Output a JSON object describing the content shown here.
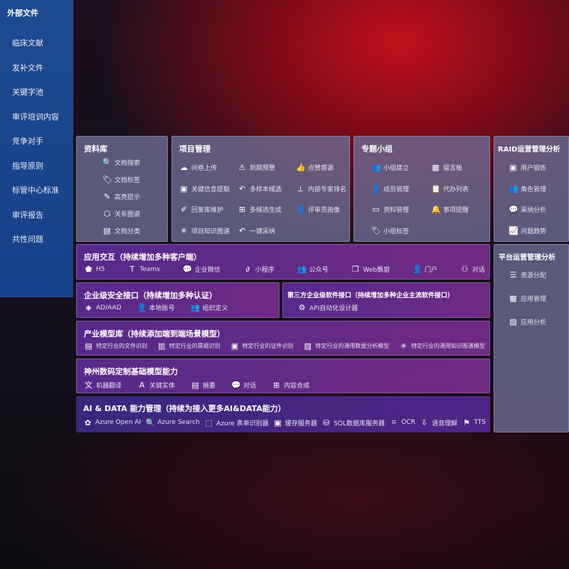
{
  "external": {
    "title": "外部文件",
    "items": [
      "临床文献",
      "发补文件",
      "关键字池",
      "审评培训内容",
      "竞争对手",
      "指导原则",
      "标管中心标准",
      "审评报告",
      "共性问题"
    ]
  },
  "library": {
    "title": "资料库",
    "items": [
      {
        "icon": "doc-search-icon",
        "g": "🔍",
        "label": "文档搜索"
      },
      {
        "icon": "tag-icon",
        "g": "🏷",
        "label": "文档标签"
      },
      {
        "icon": "pen-icon",
        "g": "✎",
        "label": "高亮提示"
      },
      {
        "icon": "graph-icon",
        "g": "⬡",
        "label": "关系图谱"
      },
      {
        "icon": "doc-classify-icon",
        "g": "▤",
        "label": "文档分类"
      }
    ]
  },
  "project": {
    "title": "项目管理",
    "items": [
      {
        "icon": "cloud-upload-icon",
        "g": "☁",
        "label": "问卷上传"
      },
      {
        "icon": "alarm-icon",
        "g": "⚠",
        "label": "到期预警"
      },
      {
        "icon": "thumbs-up-icon",
        "g": "👍",
        "label": "点赞感谢"
      },
      {
        "icon": "extract-icon",
        "g": "▣",
        "label": "关键信息提取"
      },
      {
        "icon": "reply-icon",
        "g": "↶",
        "label": "多样本候选"
      },
      {
        "icon": "rank-icon",
        "g": "⊥",
        "label": "内部专家排名"
      },
      {
        "icon": "edit-icon",
        "g": "✐",
        "label": "回复库维护"
      },
      {
        "icon": "puzzle-icon",
        "g": "⊞",
        "label": "多候选生成"
      },
      {
        "icon": "person-icon",
        "g": "👤",
        "label": "评审员画像"
      },
      {
        "icon": "knowledge-graph-icon",
        "g": "✳",
        "label": "项目知识图谱"
      },
      {
        "icon": "accept-icon",
        "g": "↶",
        "label": "一键采纳"
      }
    ]
  },
  "group": {
    "title": "专题小组",
    "items": [
      {
        "icon": "group-icon",
        "g": "👥",
        "label": "小组建立"
      },
      {
        "icon": "bbs-icon",
        "g": "▦",
        "label": "留言板"
      },
      {
        "icon": "member-icon",
        "g": "👤",
        "label": "成员管理"
      },
      {
        "icon": "clipboard-icon",
        "g": "📋",
        "label": "代办列表"
      },
      {
        "icon": "folder-icon",
        "g": "▭",
        "label": "资料管理"
      },
      {
        "icon": "bell-icon",
        "g": "🔔",
        "label": "事项提醒"
      },
      {
        "icon": "tag-icon",
        "g": "🏷",
        "label": "小组标签"
      }
    ]
  },
  "raid": {
    "title": "RAID运营管理分析",
    "items": [
      {
        "icon": "id-card-icon",
        "g": "▣",
        "label": "用户锻炼"
      },
      {
        "icon": "users-icon",
        "g": "👥",
        "label": "角色管理"
      },
      {
        "icon": "qa-icon",
        "g": "💬",
        "label": "采纳分析"
      },
      {
        "icon": "trend-icon",
        "g": "📈",
        "label": "问题趋势"
      }
    ]
  },
  "platform": {
    "title": "平台运营管理分析",
    "items": [
      {
        "icon": "list-icon",
        "g": "☰",
        "label": "资源分配"
      },
      {
        "icon": "apps-icon",
        "g": "▦",
        "label": "应用管理"
      },
      {
        "icon": "chart-icon",
        "g": "▨",
        "label": "应用分析"
      }
    ]
  },
  "interaction": {
    "title": "应用交互（持续增加多种客户端）",
    "items": [
      {
        "icon": "html5-icon",
        "g": "⬟",
        "label": "H5"
      },
      {
        "icon": "teams-icon",
        "g": "T",
        "label": "Teams"
      },
      {
        "icon": "wecom-icon",
        "g": "💬",
        "label": "企业微信"
      },
      {
        "icon": "miniprogram-icon",
        "g": "∂",
        "label": "小程序"
      },
      {
        "icon": "official-account-icon",
        "g": "👥",
        "label": "公众号"
      },
      {
        "icon": "window-icon",
        "g": "❐",
        "label": "Web飘窗"
      },
      {
        "icon": "portal-icon",
        "g": "👤",
        "label": "门户"
      },
      {
        "icon": "chat-people-icon",
        "g": "⚇",
        "label": "对话"
      }
    ]
  },
  "security": {
    "title": "企业级安全接口（持续增加多种认证）",
    "items": [
      {
        "icon": "ad-icon",
        "g": "◈",
        "label": "AD/AAD"
      },
      {
        "icon": "local-account-icon",
        "g": "👤",
        "label": "本地账号"
      },
      {
        "icon": "org-icon",
        "g": "👥",
        "label": "组织定义"
      }
    ]
  },
  "thirdparty": {
    "title": "第三方企业级软件接口（持续增加多种企业主流软件接口）",
    "items": [
      {
        "icon": "api-gear-icon",
        "g": "⚙",
        "label": "API自动化设计器"
      }
    ]
  },
  "industry": {
    "title": "产业模型库（持续添加端到端场景模型）",
    "items": [
      {
        "icon": "file-icon",
        "g": "▤",
        "label": "特定行业的文件识别"
      },
      {
        "icon": "receipt-icon",
        "g": "▥",
        "label": "特定行业的票据识别"
      },
      {
        "icon": "id-icon",
        "g": "▣",
        "label": "特定行业的证件识别"
      },
      {
        "icon": "data-analysis-icon",
        "g": "▨",
        "label": "特定行业的通用数据分析模型"
      },
      {
        "icon": "knowledge-graph-icon",
        "g": "✳",
        "label": "特定行业的通用知识图谱模型"
      }
    ]
  },
  "base": {
    "title": "神州数码定制基础模型能力",
    "items": [
      {
        "icon": "translate-icon",
        "g": "文",
        "label": "机器翻译"
      },
      {
        "icon": "entity-icon",
        "g": "A",
        "label": "关键实体"
      },
      {
        "icon": "summary-icon",
        "g": "▤",
        "label": "摘要"
      },
      {
        "icon": "chat-icon",
        "g": "💬",
        "label": "对话"
      },
      {
        "icon": "compose-icon",
        "g": "⊞",
        "label": "内容合成"
      }
    ]
  },
  "aidata": {
    "title": "AI & DATA 能力管理（持续为接入更多AI&DATA能力）",
    "items": [
      {
        "icon": "openai-icon",
        "g": "✿",
        "label": "Azure Open AI"
      },
      {
        "icon": "search-icon",
        "g": "🔍",
        "label": "Azure Search"
      },
      {
        "icon": "form-recognizer-icon",
        "g": "⬚",
        "label": "Azure 表单识别器"
      },
      {
        "icon": "cache-icon",
        "g": "▣",
        "label": "缓存服务器"
      },
      {
        "icon": "sql-icon",
        "g": "⛁",
        "label": "SQL数据库服务器"
      },
      {
        "icon": "ocr-icon",
        "g": "⌗",
        "label": "OCR"
      },
      {
        "icon": "speech-icon",
        "g": "⇩",
        "label": "语音理解"
      },
      {
        "icon": "tts-icon",
        "g": "⚑",
        "label": "TTS"
      }
    ]
  }
}
